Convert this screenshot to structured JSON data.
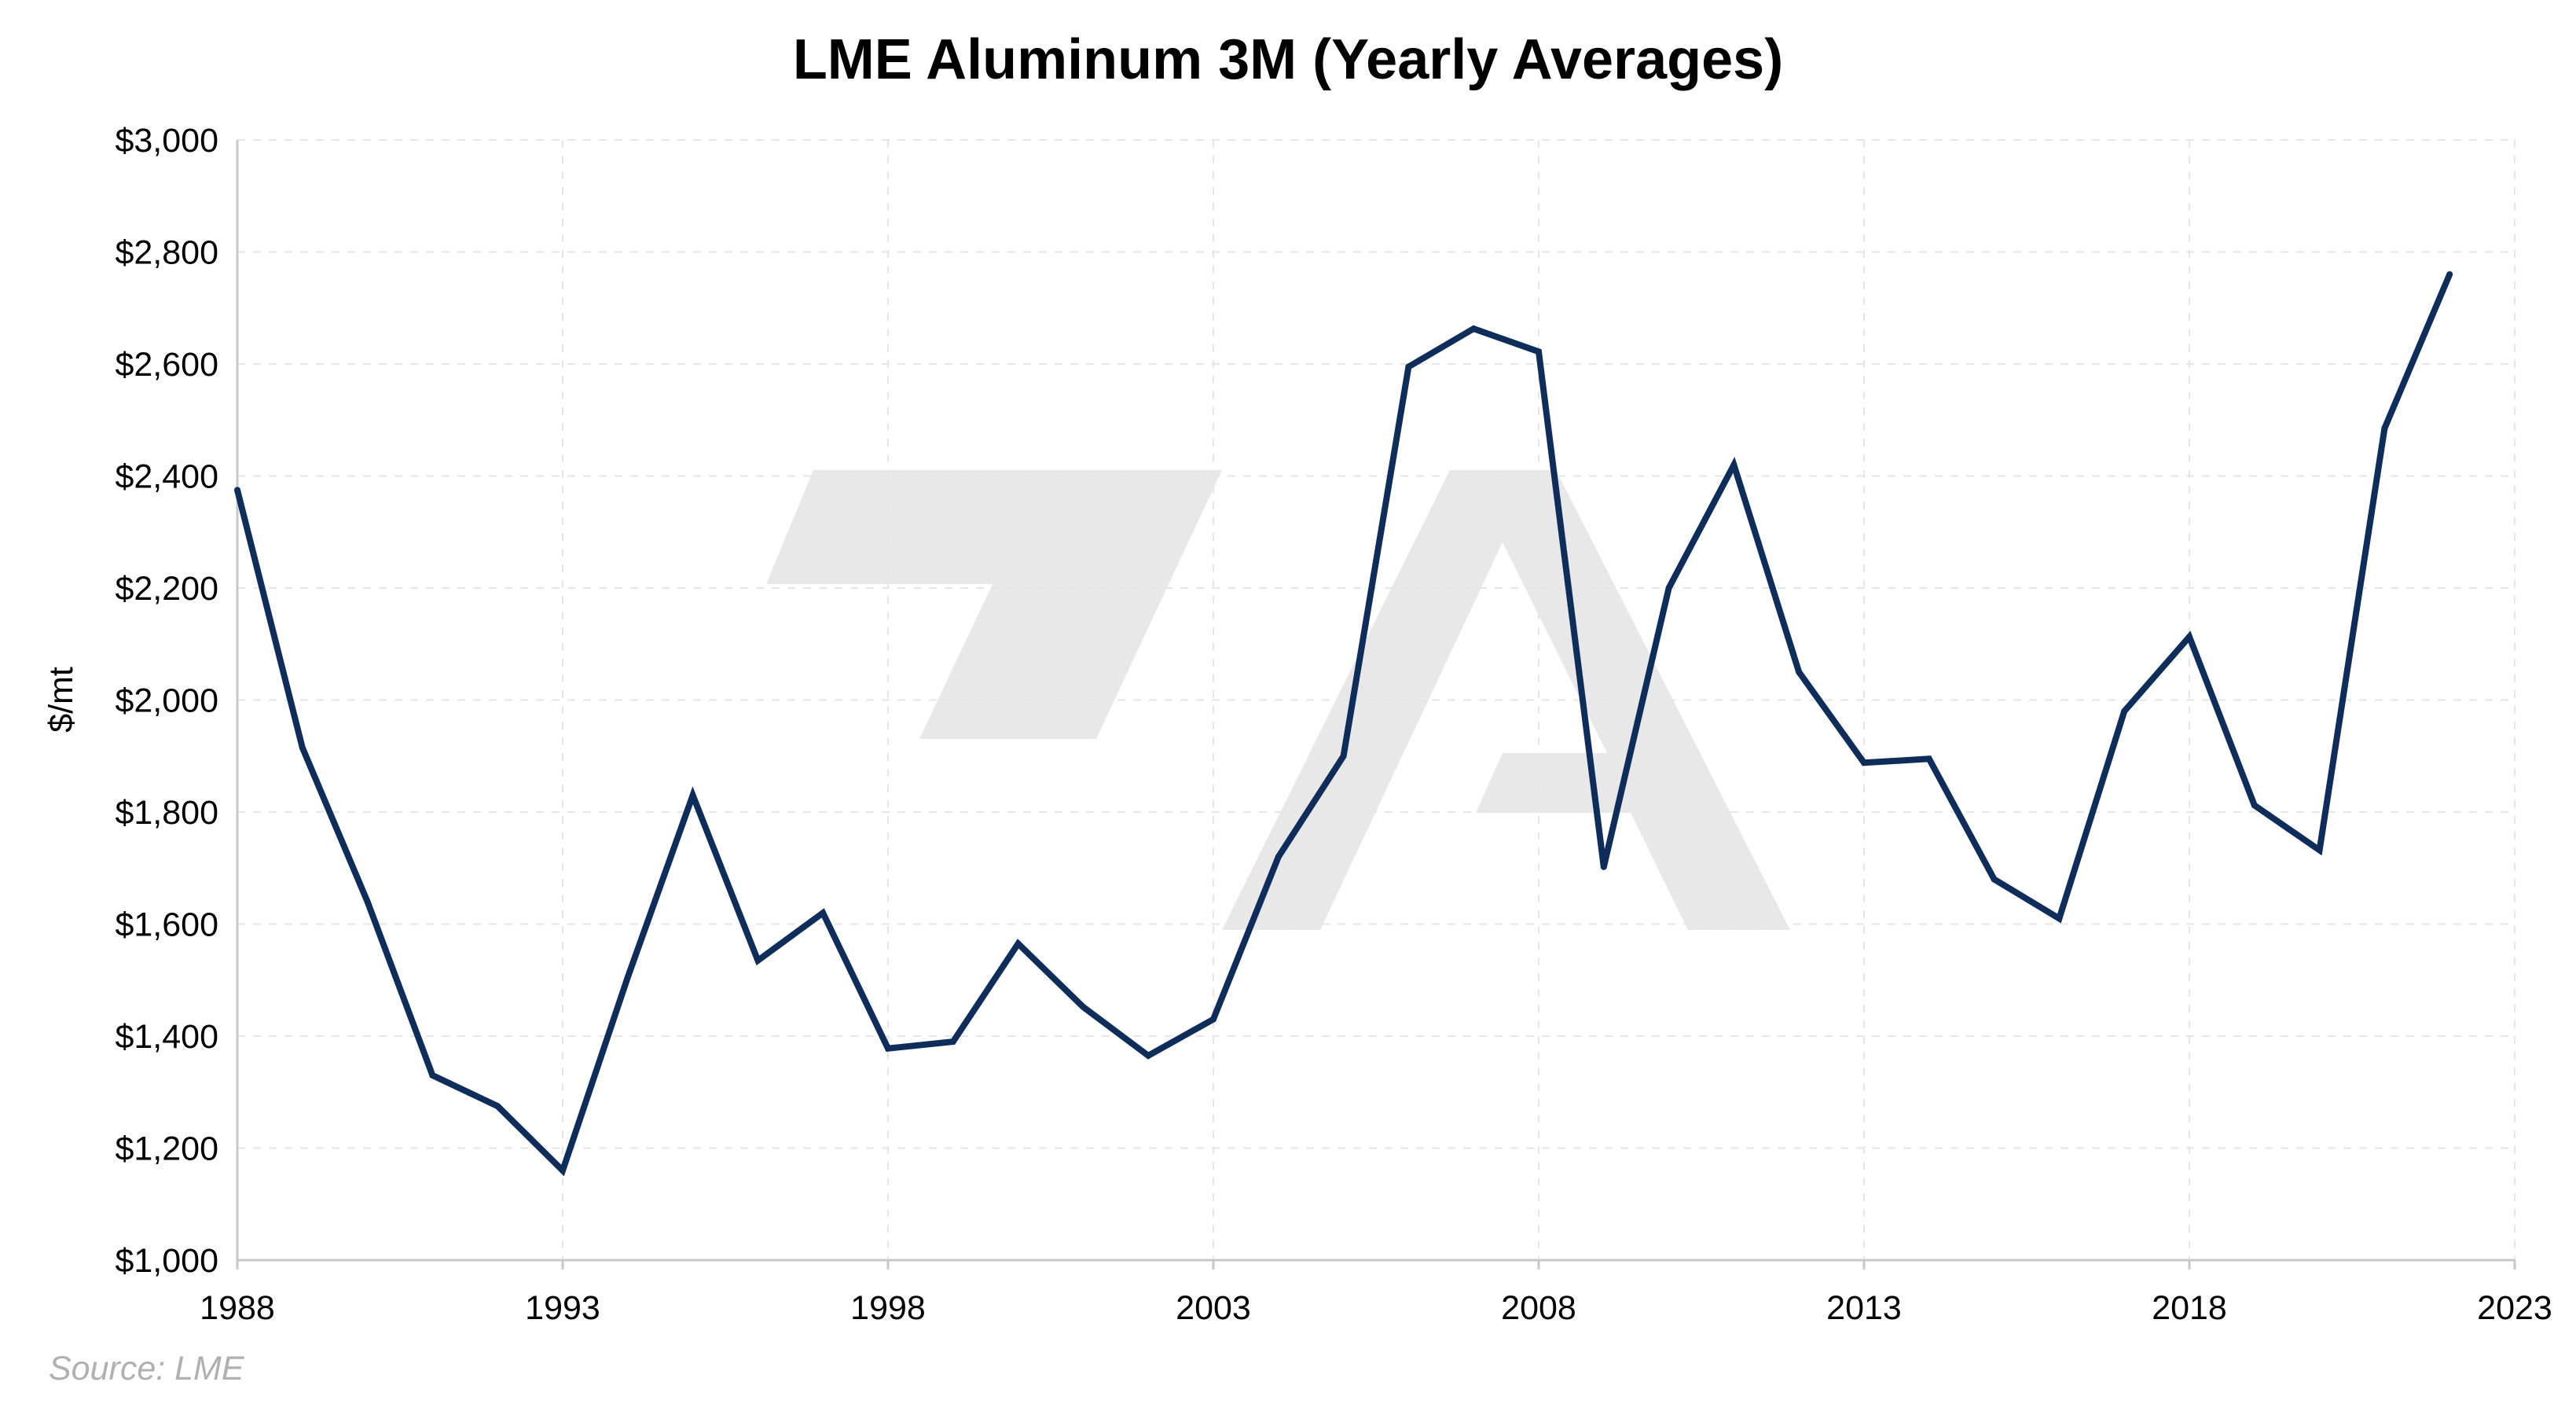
{
  "chart_data": {
    "type": "line",
    "title": "LME Aluminum 3M (Yearly Averages)",
    "xlabel": "",
    "ylabel": "$/mt",
    "xlim": [
      1988,
      2023
    ],
    "ylim": [
      1000,
      3000
    ],
    "x_ticks": [
      1988,
      1993,
      1998,
      2003,
      2008,
      2013,
      2018,
      2023
    ],
    "y_ticks": [
      1000,
      1200,
      1400,
      1600,
      1800,
      2000,
      2200,
      2400,
      2600,
      2800,
      3000
    ],
    "y_tick_labels": [
      "$1,000",
      "$1,200",
      "$1,400",
      "$1,600",
      "$1,800",
      "$2,000",
      "$2,200",
      "$2,400",
      "$2,600",
      "$2,800",
      "$3,000"
    ],
    "grid": true,
    "legend": "none",
    "series": [
      {
        "color": "#0f2d5a",
        "x": [
          1988,
          1989,
          1990,
          1991,
          1992,
          1993,
          1994,
          1995,
          1996,
          1997,
          1998,
          1999,
          2000,
          2001,
          2002,
          2003,
          2004,
          2005,
          2006,
          2007,
          2008,
          2009,
          2010,
          2011,
          2012,
          2013,
          2014,
          2015,
          2016,
          2017,
          2018,
          2019,
          2020,
          2021,
          2022
        ],
        "values": [
          2375,
          1915,
          1640,
          1330,
          1275,
          1160,
          1505,
          1830,
          1535,
          1620,
          1378,
          1390,
          1565,
          1452,
          1365,
          1430,
          1720,
          1900,
          2595,
          2663,
          2622,
          1702,
          2200,
          2420,
          2050,
          1888,
          1895,
          1680,
          1610,
          1980,
          2113,
          1812,
          1732,
          2485,
          2760
        ]
      }
    ]
  },
  "source": "Source: LME",
  "colors": {
    "line": "#0f2d5a",
    "grid": "#e6e6e6",
    "axis": "#c8c8c8",
    "watermark": "#e8e8e8",
    "source": "#b0b0b0"
  }
}
